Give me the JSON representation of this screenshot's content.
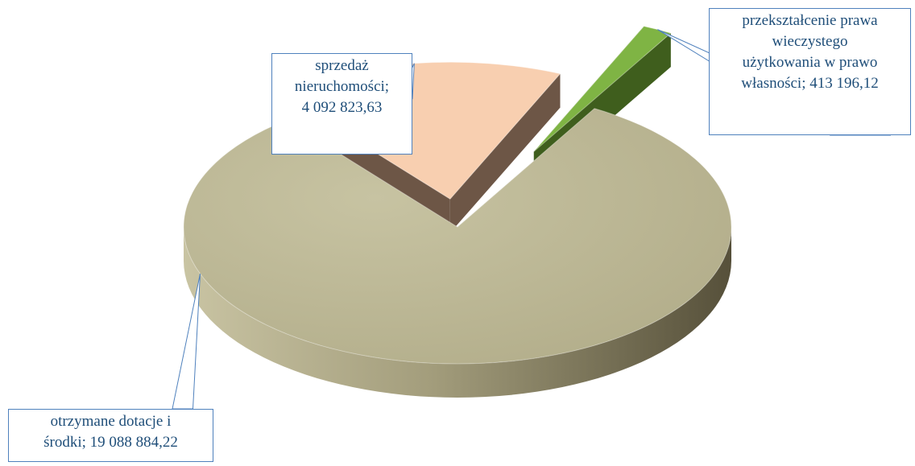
{
  "chart_data": {
    "type": "pie",
    "style": "3d-exploded",
    "slices": [
      {
        "label": "otrzymane dotacje i środki",
        "value": 19088884.22,
        "display": "19 088 884,22",
        "color": "#bdb995"
      },
      {
        "label": "sprzedaż nieruchomości",
        "value": 4092823.63,
        "display": "4 092 823,63",
        "color": "#f8cfb0"
      },
      {
        "label": "przekształcenie prawa wieczystego użytkowania w prawo własności",
        "value": 413196.12,
        "display": "413 196,12",
        "color": "#7fb444"
      }
    ],
    "data_labels": {
      "slice0": [
        "otrzymane dotacje i",
        "środki; 19 088 884,22"
      ],
      "slice1": [
        "sprzedaż",
        "nieruchomości;",
        "4 092 823,63"
      ],
      "slice2": [
        "przekształcenie prawa",
        "wieczystego",
        "użytkowania w prawo",
        "własności; 413 196,12"
      ]
    },
    "legend": "none"
  }
}
